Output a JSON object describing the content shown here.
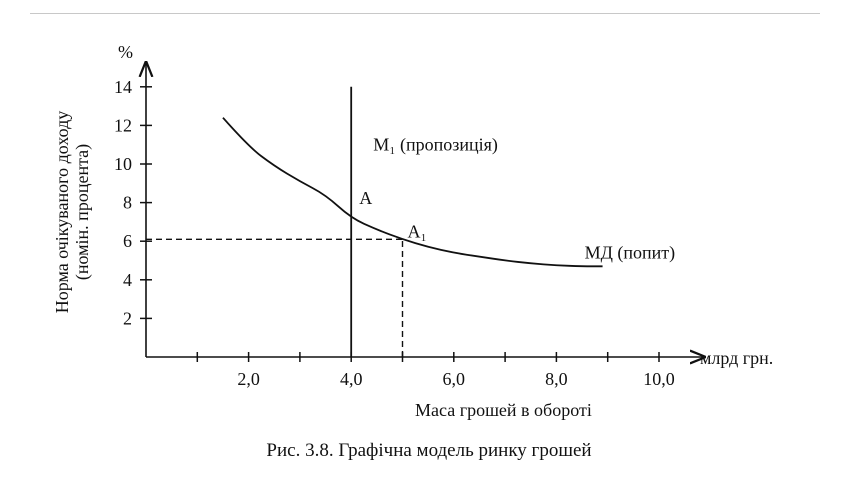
{
  "chart_data": {
    "type": "line",
    "xlabel": "Маса грошей в обороті",
    "x_unit": "млрд грн.",
    "ylabel_line1": "Норма очікуваного доходу",
    "ylabel_line2": "(номін. процента)",
    "y_unit": "%",
    "xlim": [
      0,
      11
    ],
    "ylim": [
      0,
      15
    ],
    "x_ticks": [
      1,
      2,
      3,
      4,
      5,
      6,
      7,
      8,
      9,
      10
    ],
    "x_tick_labels": [
      {
        "x": 2,
        "label": "2,0"
      },
      {
        "x": 4,
        "label": "4,0"
      },
      {
        "x": 6,
        "label": "6,0"
      },
      {
        "x": 8,
        "label": "8,0"
      },
      {
        "x": 10,
        "label": "10,0"
      }
    ],
    "y_ticks": [
      2,
      4,
      6,
      8,
      10,
      12,
      14
    ],
    "y_tick_labels": [
      "2",
      "4",
      "6",
      "8",
      "10",
      "12",
      "14"
    ],
    "series": [
      {
        "name": "МД (попит)",
        "kind": "demand-curve",
        "x": [
          1.5,
          2.0,
          2.5,
          3.0,
          3.5,
          4.0,
          4.5,
          5.0,
          5.5,
          6.0,
          6.5,
          7.0,
          7.5,
          8.0,
          8.5,
          8.9
        ],
        "y": [
          12.4,
          10.9,
          9.9,
          9.1,
          8.4,
          7.2,
          6.6,
          6.1,
          5.7,
          5.4,
          5.2,
          5.0,
          4.85,
          4.75,
          4.7,
          4.7
        ]
      },
      {
        "name": "M₁ (пропозиція)",
        "kind": "supply-line",
        "x": [
          4.0,
          4.0
        ],
        "y": [
          0,
          14.0
        ]
      }
    ],
    "annotations": [
      {
        "label": "A",
        "x": 4.0,
        "y": 7.2
      },
      {
        "label": "A₁",
        "x": 5.0,
        "y": 6.1
      }
    ],
    "reference_lines": {
      "h": {
        "y": 6.1,
        "x_from": 0,
        "x_to": 5.0
      },
      "v": {
        "x": 5.0,
        "y_from": 0,
        "y_to": 6.1
      }
    }
  },
  "caption": "Рис. 3.8. Графічна модель ринку грошей"
}
